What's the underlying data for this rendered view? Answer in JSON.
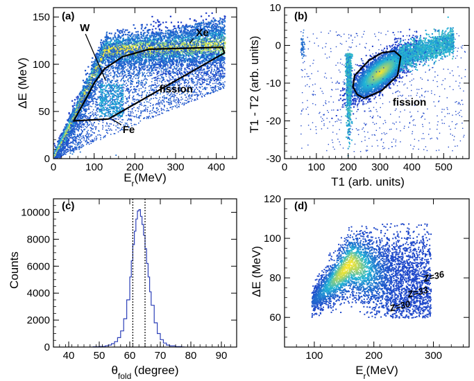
{
  "chart_data": [
    {
      "panel": "(a)",
      "type": "heatmap",
      "xlabel": "E",
      "xlabel_sub": "r",
      "xlabel_unit": "(MeV)",
      "ylabel": "ΔE (MeV)",
      "xlim": [
        0,
        450
      ],
      "ylim": [
        0,
        160
      ],
      "xticks": [
        0,
        100,
        200,
        300,
        400
      ],
      "yticks": [
        0,
        50,
        100,
        150
      ],
      "annotations": [
        {
          "text": "Xe",
          "x": 350,
          "y": 130,
          "arrow_to": [
            335,
            122
          ]
        },
        {
          "text": "W",
          "x": 65,
          "y": 135,
          "arrow_to": [
            128,
            83
          ]
        },
        {
          "text": "fission",
          "x": 260,
          "y": 70
        },
        {
          "text": "Fe",
          "x": 170,
          "y": 27,
          "arrow_to": [
            143,
            42
          ]
        }
      ],
      "fission_contour": [
        [
          50,
          40
        ],
        [
          135,
          42
        ],
        [
          420,
          112
        ],
        [
          415,
          118
        ],
        [
          235,
          116
        ],
        [
          170,
          108
        ],
        [
          125,
          95
        ],
        [
          100,
          80
        ],
        [
          78,
          62
        ],
        [
          60,
          48
        ]
      ]
    },
    {
      "panel": "(b)",
      "type": "heatmap",
      "xlabel": "T1 (arb. units)",
      "ylabel": "T1 - T2 (arb. units)",
      "xlim": [
        0,
        580
      ],
      "ylim": [
        -30,
        10
      ],
      "xticks": [
        0,
        100,
        200,
        300,
        400,
        500
      ],
      "yticks": [
        -30,
        -20,
        -10,
        0,
        10
      ],
      "annotations": [
        {
          "text": "fission",
          "x": 340,
          "y": -16
        }
      ],
      "fission_contour": [
        [
          220,
          -8
        ],
        [
          265,
          -4
        ],
        [
          305,
          -2
        ],
        [
          345,
          -1.5
        ],
        [
          365,
          -3
        ],
        [
          355,
          -8
        ],
        [
          305,
          -12
        ],
        [
          250,
          -14
        ],
        [
          228,
          -13
        ],
        [
          215,
          -11
        ]
      ]
    },
    {
      "panel": "(c)",
      "type": "line",
      "xlabel": "θ",
      "xlabel_sub": "fold",
      "xlabel_unit": "(degree)",
      "ylabel": "Counts",
      "xlim": [
        35,
        95
      ],
      "ylim": [
        0,
        11000
      ],
      "xticks": [
        40,
        50,
        60,
        70,
        80,
        90
      ],
      "yticks": [
        0,
        2000,
        4000,
        6000,
        8000,
        10000
      ],
      "x": [
        48,
        50,
        52,
        53,
        54,
        55,
        56,
        57,
        58,
        59,
        60,
        60.5,
        61,
        61.5,
        62,
        62.5,
        63,
        63.5,
        64,
        64.5,
        65,
        65.5,
        66,
        66.5,
        67,
        68,
        69,
        70,
        71,
        72,
        73,
        75,
        77
      ],
      "values": [
        20,
        40,
        90,
        150,
        250,
        400,
        700,
        1200,
        2100,
        3500,
        5200,
        6400,
        7600,
        8600,
        9500,
        10100,
        10200,
        9700,
        9100,
        8300,
        7300,
        6200,
        5200,
        4100,
        3100,
        1800,
        1000,
        550,
        300,
        150,
        80,
        30,
        10
      ],
      "vlines": [
        61,
        65
      ]
    },
    {
      "panel": "(d)",
      "type": "heatmap",
      "xlabel": "E",
      "xlabel_sub": "r",
      "xlabel_unit": "(MeV)",
      "ylabel": "ΔE (MeV)",
      "xlim": [
        50,
        360
      ],
      "ylim": [
        45,
        120
      ],
      "xticks": [
        100,
        200,
        300
      ],
      "yticks": [
        60,
        80,
        100,
        120
      ],
      "annotations": [
        {
          "text": "Z=36",
          "x": 285,
          "y": 78
        },
        {
          "text": "Z=33",
          "x": 258,
          "y": 70
        },
        {
          "text": "Z=30",
          "x": 228,
          "y": 63
        }
      ]
    }
  ],
  "colors": {
    "low": "#1f3cc9",
    "mid": "#21b5d6",
    "high": "#fbe62a",
    "hist": "#2b3fb8",
    "contour": "#000000"
  }
}
